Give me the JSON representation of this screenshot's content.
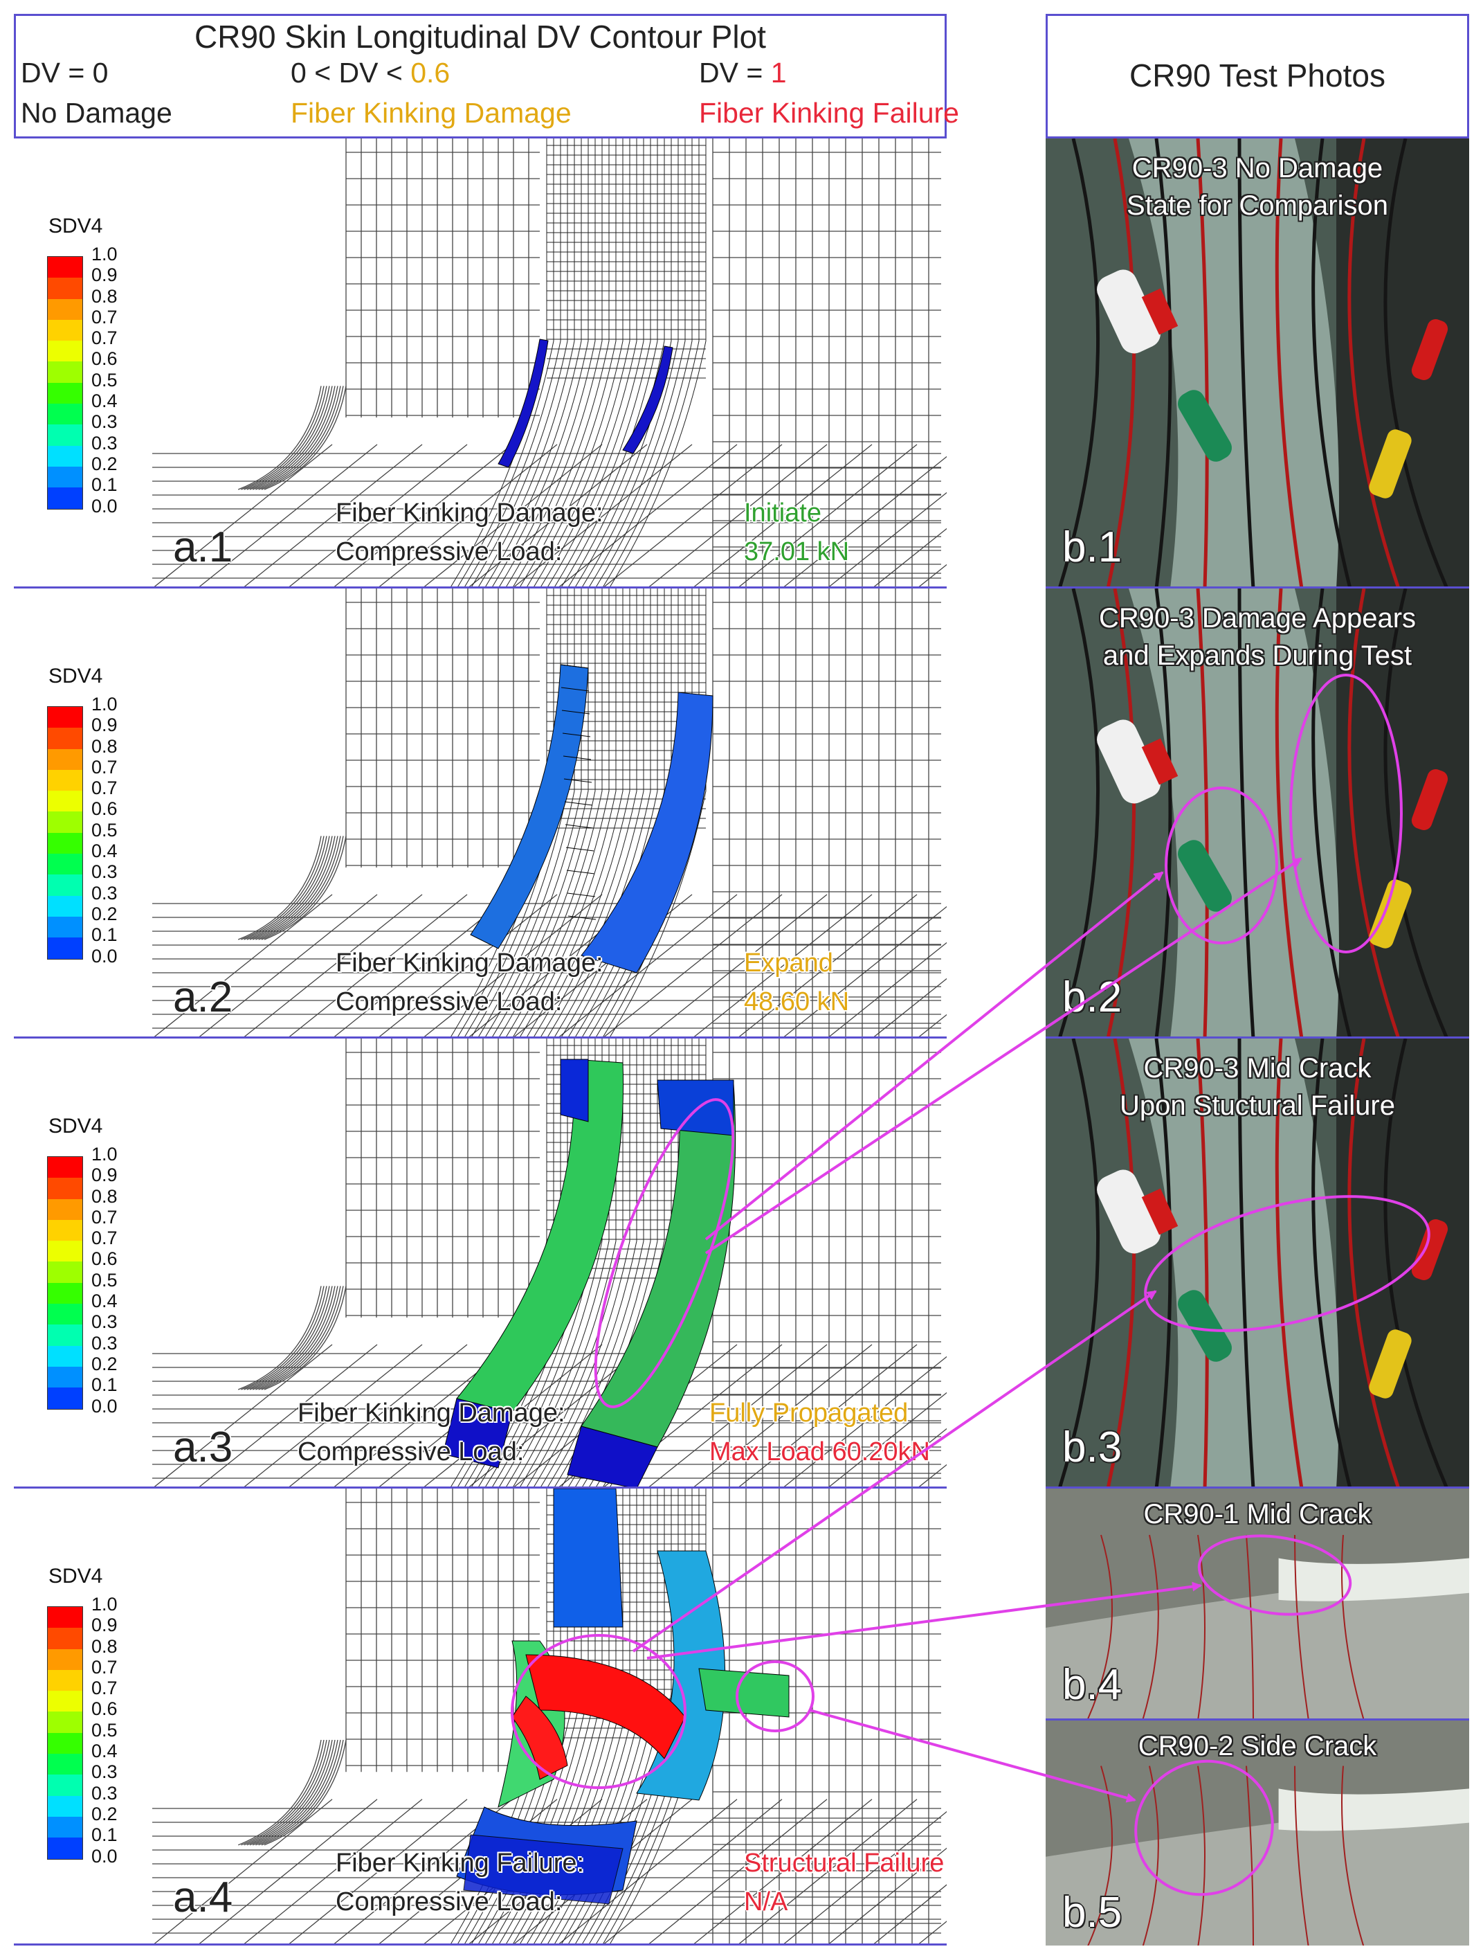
{
  "left_header": {
    "title": "CR90 Skin Longitudinal DV Contour Plot",
    "dv0": "DV = 0",
    "dv0_desc": "No Damage",
    "dv_mid_prefix": "0 < DV < ",
    "dv_mid_value": "0.6",
    "dv_mid_desc": "Fiber Kinking Damage",
    "dv1_prefix": "DV = ",
    "dv1_value": "1",
    "dv1_desc": "Fiber Kinking Failure"
  },
  "right_header": {
    "title": "CR90 Test Photos"
  },
  "colors": {
    "frame": "#5a4fd0",
    "damage_text": "#e2a812",
    "failure_text": "#e8283a",
    "initiate_text": "#2fa12f",
    "annotation": "#e040e8"
  },
  "legend": {
    "title": "SDV4",
    "labels": [
      "1.0",
      "0.9",
      "0.8",
      "0.7",
      "0.7",
      "0.6",
      "0.5",
      "0.4",
      "0.3",
      "0.3",
      "0.2",
      "0.1",
      "0.0"
    ],
    "colors": [
      "#ff0000",
      "#ff4a00",
      "#ff9a00",
      "#ffd200",
      "#ecff00",
      "#9eff00",
      "#35ff00",
      "#00ff4f",
      "#00ffb0",
      "#00e0ff",
      "#0090ff",
      "#0040ff",
      "#0000ff"
    ]
  },
  "panels": [
    {
      "id": "a.1",
      "line1_label": "Fiber Kinking Damage:",
      "line2_label": "Compressive Load:",
      "line1_value": "Initiate",
      "line2_value": "37.01 kN",
      "value_color": "initiate"
    },
    {
      "id": "a.2",
      "line1_label": "Fiber Kinking Damage:",
      "line2_label": "Compressive Load:",
      "line1_value": "Expand",
      "line2_value": "48.60 kN",
      "value_color": "damage"
    },
    {
      "id": "a.3",
      "line1_label": "Fiber Kinking Damage:",
      "line2_label": "Compressive Load:",
      "line1_value": "Fully Propagated",
      "line2_value": "Max Load  60.20kN",
      "value_color": "mixed"
    },
    {
      "id": "a.4",
      "line1_label": "Fiber Kinking Failure:",
      "line2_label": "Compressive Load:",
      "line1_value": "Structural Failure",
      "line2_value": "N/A",
      "value_color": "failure"
    }
  ],
  "photos": [
    {
      "id": "b.1",
      "caption_line1": "CR90-3 No Damage",
      "caption_line2": "State for Comparison"
    },
    {
      "id": "b.2",
      "caption_line1": "CR90-3 Damage  Appears",
      "caption_line2": "and Expands During Test"
    },
    {
      "id": "b.3",
      "caption_line1": "CR90-3 Mid Crack",
      "caption_line2": "Upon Stuctural Failure"
    },
    {
      "id": "b.4",
      "caption_line1": "CR90-1 Mid Crack",
      "caption_line2": ""
    },
    {
      "id": "b.5",
      "caption_line1": "CR90-2 Side Crack",
      "caption_line2": ""
    }
  ]
}
